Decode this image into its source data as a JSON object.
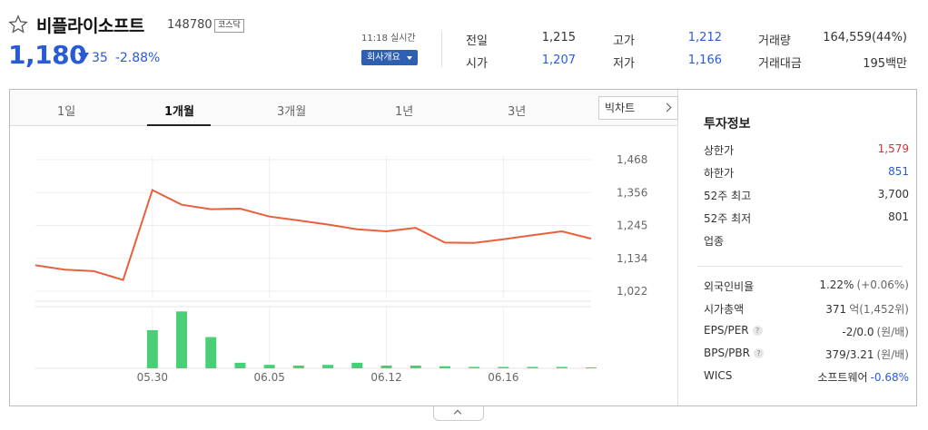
{
  "stock": {
    "name": "비플라이소프트",
    "code": "148780",
    "market": "코스닥",
    "price": "1,180",
    "change": "35",
    "change_pct": "-2.88%",
    "realtime": "11:18 실시간",
    "company_btn": "회사개요"
  },
  "quote": {
    "prev_label": "전일",
    "prev": "1,215",
    "open_label": "시가",
    "open": "1,207",
    "high_label": "고가",
    "high": "1,212",
    "low_label": "저가",
    "low": "1,166",
    "vol_label": "거래량",
    "vol": "164,559(44%)",
    "amt_label": "거래대금",
    "amt": "195백만"
  },
  "tabs": [
    "1일",
    "1개월",
    "3개월",
    "1년",
    "3년"
  ],
  "big_chart_btn": "빅차트",
  "chart_data": {
    "type": "line",
    "period": "1개월",
    "y_ticks": [
      "1,468",
      "1,356",
      "1,245",
      "1,134",
      "1,022"
    ],
    "ylim": [
      1022,
      1468
    ],
    "x_ticks": [
      {
        "label": "05.30",
        "index": 4
      },
      {
        "label": "06.05",
        "index": 8
      },
      {
        "label": "06.12",
        "index": 12
      },
      {
        "label": "06.16",
        "index": 16
      }
    ],
    "series": [
      {
        "values": [
          1110,
          1095,
          1090,
          1060,
          1365,
          1315,
          1300,
          1302,
          1275,
          1262,
          1248,
          1232,
          1225,
          1237,
          1187,
          1186,
          1198,
          1212,
          1225,
          1200
        ]
      }
    ],
    "volume": [
      0,
      0,
      0,
      0,
      0.55,
      0.82,
      0.45,
      0.08,
      0.05,
      0.04,
      0.05,
      0.08,
      0.04,
      0.04,
      0.03,
      0.02,
      0.02,
      0.02,
      0.02,
      0.01
    ],
    "colors": {
      "line": "#e8603c",
      "volume": "#4cce78"
    }
  },
  "info": {
    "title": "투자정보",
    "rows": [
      {
        "label": "상한가",
        "value": "1,579",
        "color": "red"
      },
      {
        "label": "하한가",
        "value": "851",
        "color": "blue"
      },
      {
        "label": "52주 최고",
        "value": "3,700"
      },
      {
        "label": "52주 최저",
        "value": "801"
      },
      {
        "label": "업종",
        "value": ""
      }
    ],
    "rows2": [
      {
        "label": "외국인비율",
        "value": "1.22%",
        "sub": "(+0.06%)"
      },
      {
        "label": "시가총액",
        "value": "371",
        "sub": "억(1,452위)"
      },
      {
        "label": "EPS/PER",
        "help": "?",
        "value": "-2/0.0",
        "sub": "(원/배)"
      },
      {
        "label": "BPS/PBR",
        "help": "?",
        "value": "379/3.21",
        "sub": "(원/배)"
      },
      {
        "label": "WICS",
        "value": "소프트웨어",
        "sub": "-0.68%"
      }
    ]
  }
}
